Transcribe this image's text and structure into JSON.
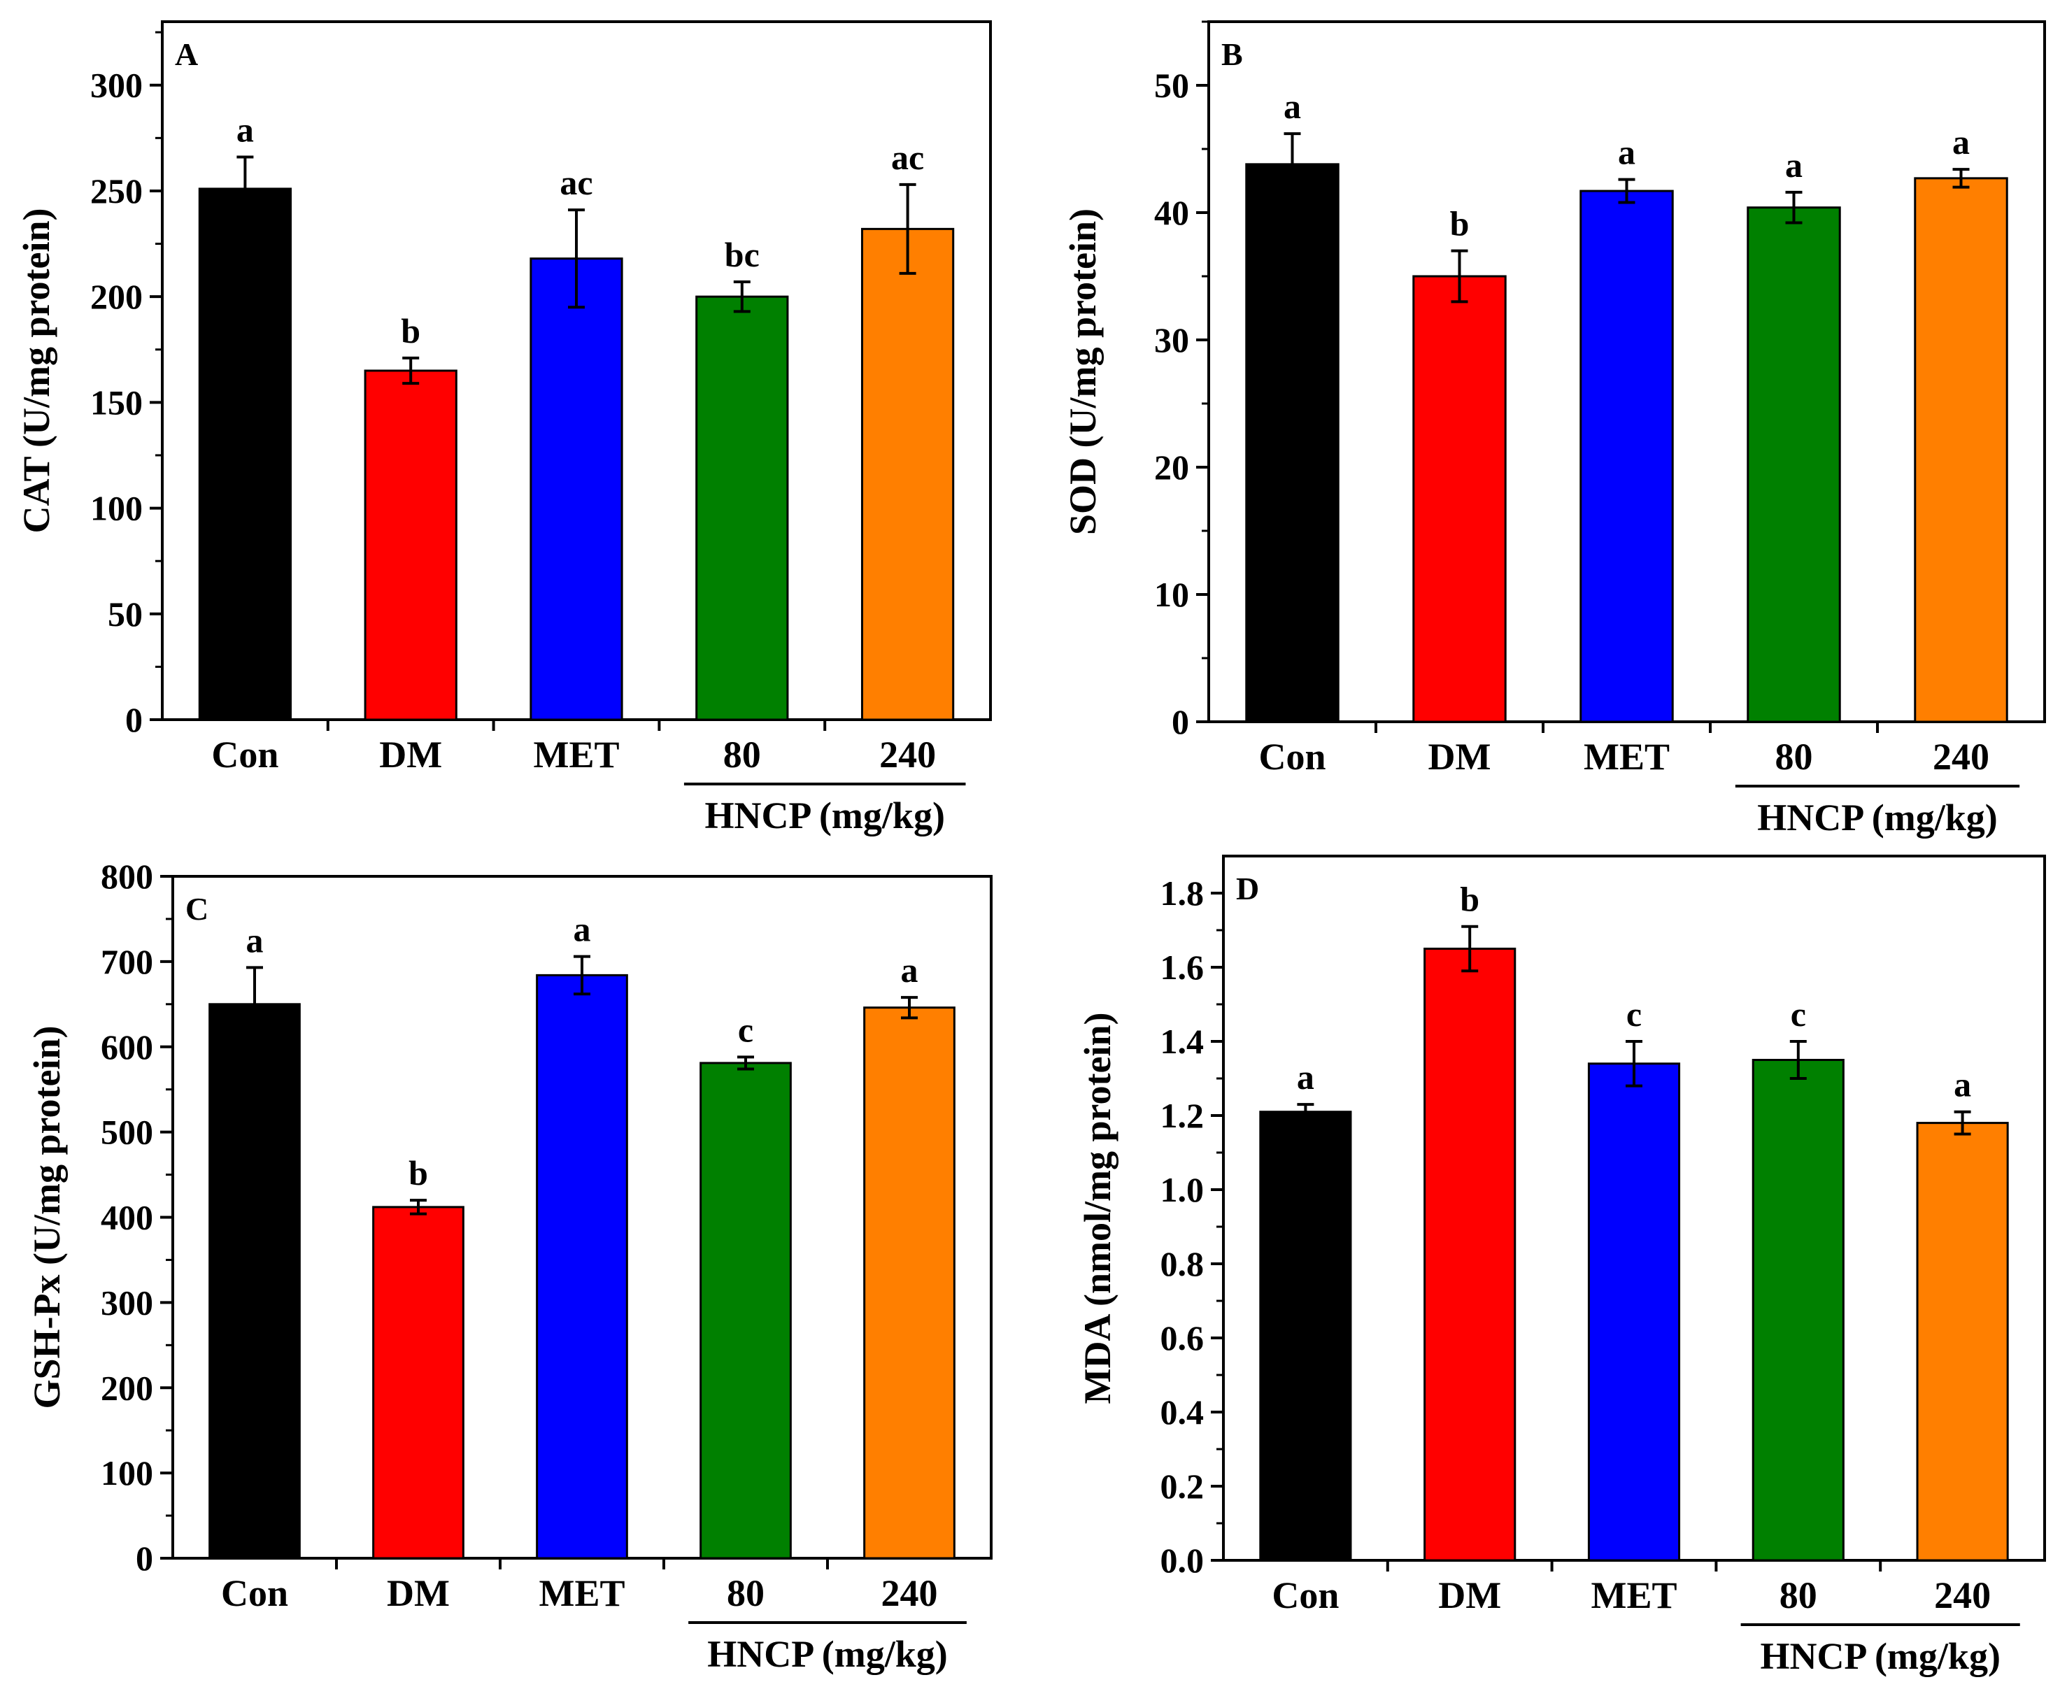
{
  "figure": {
    "group_label": "HNCP (mg/kg)"
  },
  "chart_data": [
    {
      "type": "bar",
      "panel": "A",
      "ylabel": "CAT (U/mg protein)",
      "categories": [
        "Con",
        "DM",
        "MET",
        "80",
        "240"
      ],
      "values": [
        251,
        165,
        218,
        200,
        232
      ],
      "errors": [
        15,
        6,
        23,
        7,
        21
      ],
      "significance": [
        "a",
        "b",
        "ac",
        "bc",
        "ac"
      ],
      "colors": [
        "#000000",
        "#ff0000",
        "#0000ff",
        "#008000",
        "#ff7f00"
      ],
      "ylim": [
        0,
        330
      ],
      "yticks": [
        0,
        50,
        100,
        150,
        200,
        250,
        300
      ],
      "ytick_labels": [
        "0",
        "50",
        "100",
        "150",
        "200",
        "250",
        "300"
      ],
      "group_label": "HNCP (mg/kg)"
    },
    {
      "type": "bar",
      "panel": "B",
      "ylabel": "SOD (U/mg protein)",
      "categories": [
        "Con",
        "DM",
        "MET",
        "80",
        "240"
      ],
      "values": [
        43.8,
        35.0,
        41.7,
        40.4,
        42.7
      ],
      "errors": [
        2.4,
        2.0,
        0.9,
        1.2,
        0.7
      ],
      "significance": [
        "a",
        "b",
        "a",
        "a",
        "a"
      ],
      "colors": [
        "#000000",
        "#ff0000",
        "#0000ff",
        "#008000",
        "#ff7f00"
      ],
      "ylim": [
        0,
        55
      ],
      "yticks": [
        0,
        10,
        20,
        30,
        40,
        50
      ],
      "ytick_labels": [
        "0",
        "10",
        "20",
        "30",
        "40",
        "50"
      ],
      "group_label": "HNCP (mg/kg)"
    },
    {
      "type": "bar",
      "panel": "C",
      "ylabel": "GSH-Px (U/mg protein)",
      "categories": [
        "Con",
        "DM",
        "MET",
        "80",
        "240"
      ],
      "values": [
        650,
        412,
        684,
        581,
        646
      ],
      "errors": [
        43,
        8,
        22,
        7,
        12
      ],
      "significance": [
        "a",
        "b",
        "a",
        "c",
        "a"
      ],
      "colors": [
        "#000000",
        "#ff0000",
        "#0000ff",
        "#008000",
        "#ff7f00"
      ],
      "ylim": [
        0,
        800
      ],
      "yticks": [
        0,
        100,
        200,
        300,
        400,
        500,
        600,
        700,
        800
      ],
      "ytick_labels": [
        "0",
        "100",
        "200",
        "300",
        "400",
        "500",
        "600",
        "700",
        "800"
      ],
      "group_label": "HNCP (mg/kg)"
    },
    {
      "type": "bar",
      "panel": "D",
      "ylabel": "MDA (nmol/mg protein)",
      "categories": [
        "Con",
        "DM",
        "MET",
        "80",
        "240"
      ],
      "values": [
        1.21,
        1.65,
        1.34,
        1.35,
        1.18
      ],
      "errors": [
        0.02,
        0.06,
        0.06,
        0.05,
        0.03
      ],
      "significance": [
        "a",
        "b",
        "c",
        "c",
        "a"
      ],
      "colors": [
        "#000000",
        "#ff0000",
        "#0000ff",
        "#008000",
        "#ff7f00"
      ],
      "ylim": [
        0,
        1.9
      ],
      "yticks": [
        0.0,
        0.2,
        0.4,
        0.6,
        0.8,
        1.0,
        1.2,
        1.4,
        1.6,
        1.8
      ],
      "ytick_labels": [
        "0.0",
        "0.2",
        "0.4",
        "0.6",
        "0.8",
        "1.0",
        "1.2",
        "1.4",
        "1.6",
        "1.8"
      ],
      "group_label": "HNCP (mg/kg)"
    }
  ]
}
